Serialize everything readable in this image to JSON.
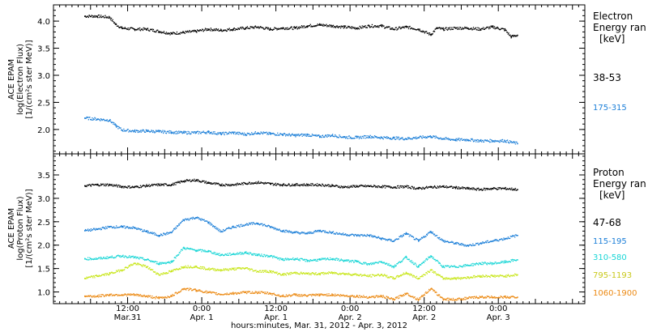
{
  "chart_data": [
    {
      "type": "scatter",
      "panel": "electron",
      "ylabel_lines": [
        "ACE EPAM",
        "log(Electron Flux)",
        "[1/(cm²s ster MeV)]"
      ],
      "ylim": [
        1.55,
        4.3
      ],
      "yticks": [
        "2.0",
        "2.5",
        "3.0",
        "3.5",
        "4.0"
      ],
      "ytick_values": [
        2.0,
        2.5,
        3.0,
        3.5,
        4.0
      ],
      "legend_title": [
        "Electron",
        "Energy ran",
        "[keV]"
      ],
      "series": [
        {
          "name": "38-53",
          "color": "#000000",
          "x": [
            0,
            2,
            4,
            5,
            6,
            8,
            10,
            12,
            14,
            16,
            18,
            20,
            22,
            24,
            26,
            28,
            30,
            32,
            34,
            36,
            38,
            40,
            42,
            44,
            46,
            48,
            50,
            52,
            54,
            56,
            57,
            58,
            60,
            62,
            64,
            66,
            68,
            69,
            70
          ],
          "y": [
            4.1,
            4.1,
            4.08,
            3.95,
            3.88,
            3.86,
            3.86,
            3.82,
            3.78,
            3.8,
            3.82,
            3.86,
            3.84,
            3.86,
            3.88,
            3.9,
            3.86,
            3.88,
            3.88,
            3.92,
            3.94,
            3.92,
            3.9,
            3.88,
            3.92,
            3.92,
            3.86,
            3.9,
            3.86,
            3.76,
            3.88,
            3.86,
            3.88,
            3.88,
            3.86,
            3.9,
            3.85,
            3.72,
            3.75
          ]
        },
        {
          "name": "175-315",
          "color": "#1c7fd8",
          "x": [
            0,
            2,
            4,
            5,
            6,
            8,
            10,
            12,
            14,
            16,
            18,
            20,
            22,
            24,
            26,
            28,
            30,
            32,
            34,
            36,
            38,
            40,
            42,
            44,
            46,
            48,
            50,
            52,
            54,
            56,
            58,
            60,
            62,
            64,
            66,
            68,
            70
          ],
          "y": [
            2.22,
            2.2,
            2.18,
            2.08,
            2.0,
            1.98,
            1.98,
            1.97,
            1.96,
            1.95,
            1.95,
            1.96,
            1.93,
            1.95,
            1.92,
            1.95,
            1.93,
            1.92,
            1.9,
            1.91,
            1.88,
            1.9,
            1.87,
            1.86,
            1.88,
            1.86,
            1.85,
            1.84,
            1.86,
            1.88,
            1.84,
            1.82,
            1.82,
            1.8,
            1.8,
            1.8,
            1.75
          ]
        }
      ]
    },
    {
      "type": "scatter",
      "panel": "proton",
      "ylabel_lines": [
        "ACE EPAM",
        "log(Proton Flux)",
        "[1/(cm²s ster MeV)]"
      ],
      "ylim": [
        0.75,
        3.95
      ],
      "yticks": [
        "1.0",
        "1.5",
        "2.0",
        "2.5",
        "3.0",
        "3.5"
      ],
      "ytick_values": [
        1.0,
        1.5,
        2.0,
        2.5,
        3.0,
        3.5
      ],
      "legend_title": [
        "Proton",
        "Energy ran",
        "[keV]"
      ],
      "series": [
        {
          "name": "47-68",
          "color": "#000000",
          "x": [
            0,
            2,
            4,
            6,
            8,
            10,
            12,
            14,
            16,
            18,
            20,
            22,
            24,
            26,
            28,
            30,
            32,
            34,
            36,
            38,
            40,
            42,
            44,
            46,
            48,
            50,
            52,
            54,
            56,
            58,
            60,
            62,
            64,
            66,
            68,
            70
          ],
          "y": [
            3.28,
            3.3,
            3.3,
            3.26,
            3.25,
            3.28,
            3.3,
            3.3,
            3.38,
            3.4,
            3.34,
            3.3,
            3.3,
            3.33,
            3.35,
            3.32,
            3.3,
            3.3,
            3.3,
            3.3,
            3.28,
            3.25,
            3.27,
            3.27,
            3.26,
            3.25,
            3.26,
            3.22,
            3.25,
            3.26,
            3.24,
            3.22,
            3.2,
            3.22,
            3.22,
            3.2
          ]
        },
        {
          "name": "115-195",
          "color": "#1c7fd8",
          "x": [
            0,
            2,
            4,
            6,
            8,
            10,
            12,
            14,
            16,
            18,
            20,
            22,
            24,
            26,
            28,
            30,
            32,
            34,
            36,
            38,
            40,
            42,
            44,
            46,
            48,
            50,
            52,
            54,
            56,
            58,
            60,
            62,
            64,
            66,
            68,
            70
          ],
          "y": [
            2.32,
            2.35,
            2.4,
            2.4,
            2.38,
            2.3,
            2.22,
            2.28,
            2.55,
            2.6,
            2.5,
            2.3,
            2.4,
            2.45,
            2.48,
            2.4,
            2.32,
            2.28,
            2.26,
            2.32,
            2.28,
            2.24,
            2.22,
            2.22,
            2.15,
            2.1,
            2.26,
            2.1,
            2.3,
            2.1,
            2.05,
            2.0,
            2.05,
            2.1,
            2.15,
            2.22
          ]
        },
        {
          "name": "310-580",
          "color": "#19d6d6",
          "x": [
            0,
            2,
            4,
            6,
            8,
            10,
            12,
            14,
            16,
            18,
            20,
            22,
            24,
            26,
            28,
            30,
            32,
            34,
            36,
            38,
            40,
            42,
            44,
            46,
            48,
            50,
            52,
            54,
            56,
            58,
            60,
            62,
            64,
            66,
            68,
            70
          ],
          "y": [
            1.72,
            1.72,
            1.75,
            1.78,
            1.75,
            1.7,
            1.62,
            1.65,
            1.95,
            1.9,
            1.88,
            1.8,
            1.82,
            1.85,
            1.8,
            1.78,
            1.7,
            1.72,
            1.68,
            1.7,
            1.72,
            1.68,
            1.66,
            1.6,
            1.66,
            1.55,
            1.75,
            1.55,
            1.78,
            1.55,
            1.55,
            1.58,
            1.62,
            1.62,
            1.65,
            1.7
          ]
        },
        {
          "name": "795-1193",
          "color": "#c8e61a",
          "x": [
            0,
            2,
            4,
            6,
            8,
            10,
            12,
            14,
            16,
            18,
            20,
            22,
            24,
            26,
            28,
            30,
            32,
            34,
            36,
            38,
            40,
            42,
            44,
            46,
            48,
            50,
            52,
            54,
            56,
            58,
            60,
            62,
            64,
            66,
            68,
            70
          ],
          "y": [
            1.3,
            1.35,
            1.4,
            1.48,
            1.62,
            1.55,
            1.38,
            1.45,
            1.55,
            1.55,
            1.5,
            1.48,
            1.5,
            1.52,
            1.45,
            1.45,
            1.38,
            1.42,
            1.4,
            1.4,
            1.42,
            1.4,
            1.38,
            1.35,
            1.38,
            1.3,
            1.42,
            1.3,
            1.48,
            1.3,
            1.3,
            1.32,
            1.35,
            1.35,
            1.35,
            1.38
          ]
        },
        {
          "name": "1060-1900",
          "color": "#ec8a14",
          "x": [
            0,
            2,
            4,
            6,
            8,
            10,
            12,
            14,
            16,
            18,
            20,
            22,
            24,
            26,
            28,
            30,
            32,
            34,
            36,
            38,
            40,
            42,
            44,
            46,
            48,
            50,
            52,
            54,
            56,
            58,
            60,
            62,
            64,
            66,
            68,
            70
          ],
          "y": [
            0.92,
            0.92,
            0.95,
            0.95,
            0.95,
            0.92,
            0.88,
            0.92,
            1.08,
            1.05,
            1.0,
            0.96,
            0.98,
            1.0,
            1.0,
            0.98,
            0.92,
            0.95,
            0.93,
            0.95,
            0.95,
            0.93,
            0.92,
            0.9,
            0.92,
            0.85,
            0.98,
            0.85,
            1.08,
            0.86,
            0.85,
            0.88,
            0.9,
            0.9,
            0.9,
            0.9
          ]
        }
      ]
    }
  ],
  "x_axis": {
    "xlabel": "hours:minutes, Mar. 31, 2012 - Apr.  3, 2012",
    "xlim": [
      -5,
      81
    ],
    "major_ticks": [
      {
        "hour": 7,
        "time": "12:00",
        "date": "Mar.31"
      },
      {
        "hour": 19,
        "time": "0:00",
        "date": "Apr. 1"
      },
      {
        "hour": 31,
        "time": "12:00",
        "date": "Apr. 1"
      },
      {
        "hour": 43,
        "time": "0:00",
        "date": "Apr. 2"
      },
      {
        "hour": 55,
        "time": "12:00",
        "date": "Apr. 2"
      },
      {
        "hour": 67,
        "time": "0:00",
        "date": "Apr. 3"
      }
    ]
  }
}
